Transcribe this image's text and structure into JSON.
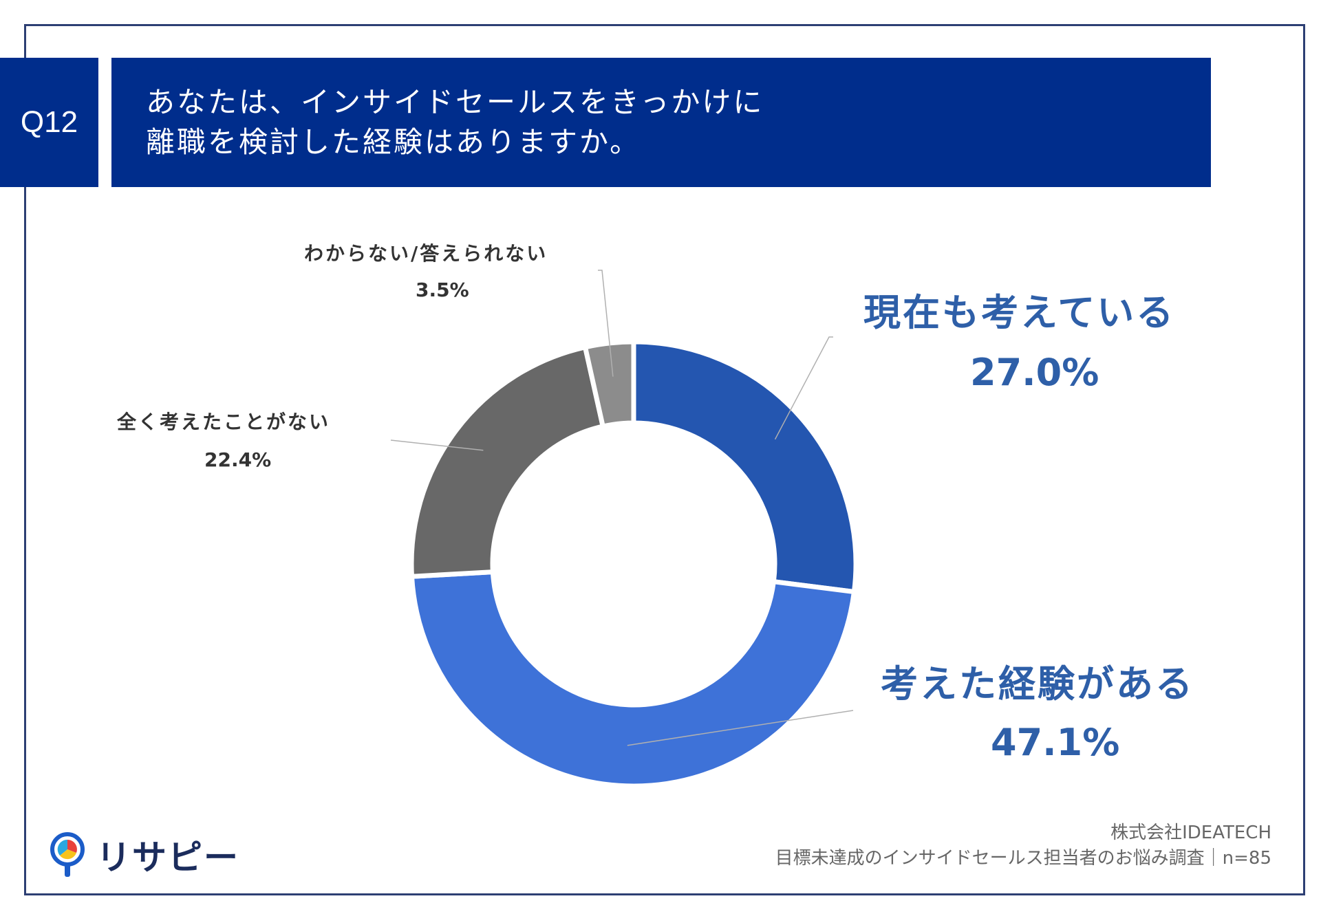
{
  "question": {
    "number": "Q12",
    "title_lines": [
      "あなたは、インサイドセールスをきっかけに",
      "離職を検討した経験はありますか。"
    ]
  },
  "chart_data": {
    "type": "pie",
    "variant": "donut",
    "title": "",
    "categories": [
      "現在も考えている",
      "考えた経験がある",
      "全く考えたことがない",
      "わからない/答えられない"
    ],
    "values": [
      27.0,
      47.1,
      22.4,
      3.5
    ],
    "value_labels": [
      "27.0%",
      "47.1%",
      "22.4%",
      "3.5%"
    ],
    "colors": [
      "#2456b0",
      "#3e72d8",
      "#686868",
      "#8c8c8c"
    ],
    "start_angle": "12 o'clock",
    "direction": "clockwise",
    "legend": "none"
  },
  "source": {
    "company": "株式会社IDEATECH",
    "survey": "目標未達成のインサイドセールス担当者のお悩み調査｜n=85"
  },
  "logo": {
    "text": "リサピー",
    "icon": "magnifier-pie-icon"
  }
}
